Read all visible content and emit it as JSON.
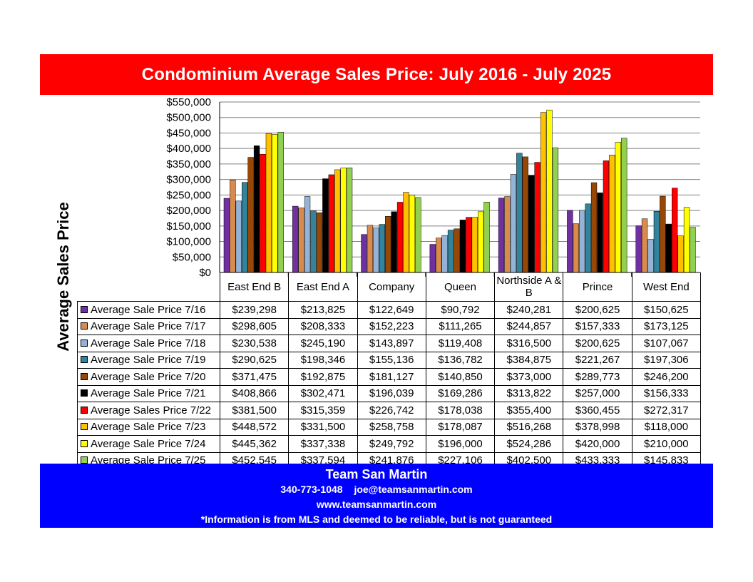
{
  "title": "Condominium Average Sales Price:  July 2016 - July 2025",
  "footer": {
    "brand": "Team San Martin",
    "phone": "340-773-1048",
    "email": "joe@teamsanmartin.com",
    "website": "www.teamsanmartin.com",
    "disclaimer": "*Information is from MLS and deemed to be reliable, but is not guaranteed"
  },
  "chart_data": {
    "type": "bar",
    "title": "Condominium Average Sales Price:  July 2016 - July 2025",
    "ylabel": "Average Sales Price",
    "xlabel": "",
    "ylim": [
      0,
      550000
    ],
    "yticks": [
      "$0",
      "$50,000",
      "$100,000",
      "$150,000",
      "$200,000",
      "$250,000",
      "$300,000",
      "$350,000",
      "$400,000",
      "$450,000",
      "$500,000",
      "$550,000"
    ],
    "grid": true,
    "legend": "table-left",
    "categories": [
      "East End B",
      "East End A",
      "Company",
      "Queen",
      "Northside A & B",
      "Prince",
      "West End"
    ],
    "series": [
      {
        "name": "Average Sale Price 7/16",
        "color": "#7030a0",
        "values": [
          239298,
          213825,
          122649,
          90792,
          240281,
          200625,
          150625
        ],
        "labels": [
          "$239,298",
          "$213,825",
          "$122,649",
          "$90,792",
          "$240,281",
          "$200,625",
          "$150,625"
        ]
      },
      {
        "name": "Average Sale Price 7/17",
        "color": "#d98b4e",
        "values": [
          298605,
          208333,
          152223,
          111265,
          244857,
          157333,
          173125
        ],
        "labels": [
          "$298,605",
          "$208,333",
          "$152,223",
          "$111,265",
          "$244,857",
          "$157,333",
          "$173,125"
        ]
      },
      {
        "name": "Average Sale Price 7/18",
        "color": "#95b3d7",
        "values": [
          230538,
          245190,
          143897,
          119408,
          316500,
          200625,
          107067
        ],
        "labels": [
          "$230,538",
          "$245,190",
          "$143,897",
          "$119,408",
          "$316,500",
          "$200,625",
          "$107,067"
        ]
      },
      {
        "name": "Average Sale Price 7/19",
        "color": "#31849b",
        "values": [
          290625,
          198346,
          155136,
          136782,
          384875,
          221267,
          197306
        ],
        "labels": [
          "$290,625",
          "$198,346",
          "$155,136",
          "$136,782",
          "$384,875",
          "$221,267",
          "$197,306"
        ]
      },
      {
        "name": "Average Sale Price 7/20",
        "color": "#974706",
        "values": [
          371475,
          192875,
          181127,
          140850,
          373000,
          289773,
          246200
        ],
        "labels": [
          "$371,475",
          "$192,875",
          "$181,127",
          "$140,850",
          "$373,000",
          "$289,773",
          "$246,200"
        ]
      },
      {
        "name": "Average Sale Price 7/21",
        "color": "#000000",
        "values": [
          408866,
          302471,
          196039,
          169286,
          313822,
          257000,
          156333
        ],
        "labels": [
          "$408,866",
          "$302,471",
          "$196,039",
          "$169,286",
          "$313,822",
          "$257,000",
          "$156,333"
        ]
      },
      {
        "name": "Average Sales Price 7/22",
        "color": "#ff0000",
        "values": [
          381500,
          315359,
          226742,
          178038,
          355400,
          360455,
          272317
        ],
        "labels": [
          "$381,500",
          "$315,359",
          "$226,742",
          "$178,038",
          "$355,400",
          "$360,455",
          "$272,317"
        ]
      },
      {
        "name": "Average Sale Price 7/23",
        "color": "#ffc000",
        "values": [
          448572,
          331500,
          258758,
          178087,
          516268,
          378998,
          118000
        ],
        "labels": [
          "$448,572",
          "$331,500",
          "$258,758",
          "$178,087",
          "$516,268",
          "$378,998",
          "$118,000"
        ]
      },
      {
        "name": "Average Sale Price 7/24",
        "color": "#ffff00",
        "values": [
          445362,
          337338,
          249792,
          196000,
          524286,
          420000,
          210000
        ],
        "labels": [
          "$445,362",
          "$337,338",
          "$249,792",
          "$196,000",
          "$524,286",
          "$420,000",
          "$210,000"
        ]
      },
      {
        "name": "Average Sale Price 7/25",
        "color": "#92d050",
        "values": [
          452545,
          337594,
          241876,
          227106,
          402500,
          433333,
          145833
        ],
        "labels": [
          "$452,545",
          "$337,594",
          "$241,876",
          "$227,106",
          "$402,500",
          "$433,333",
          "$145,833"
        ]
      }
    ]
  }
}
